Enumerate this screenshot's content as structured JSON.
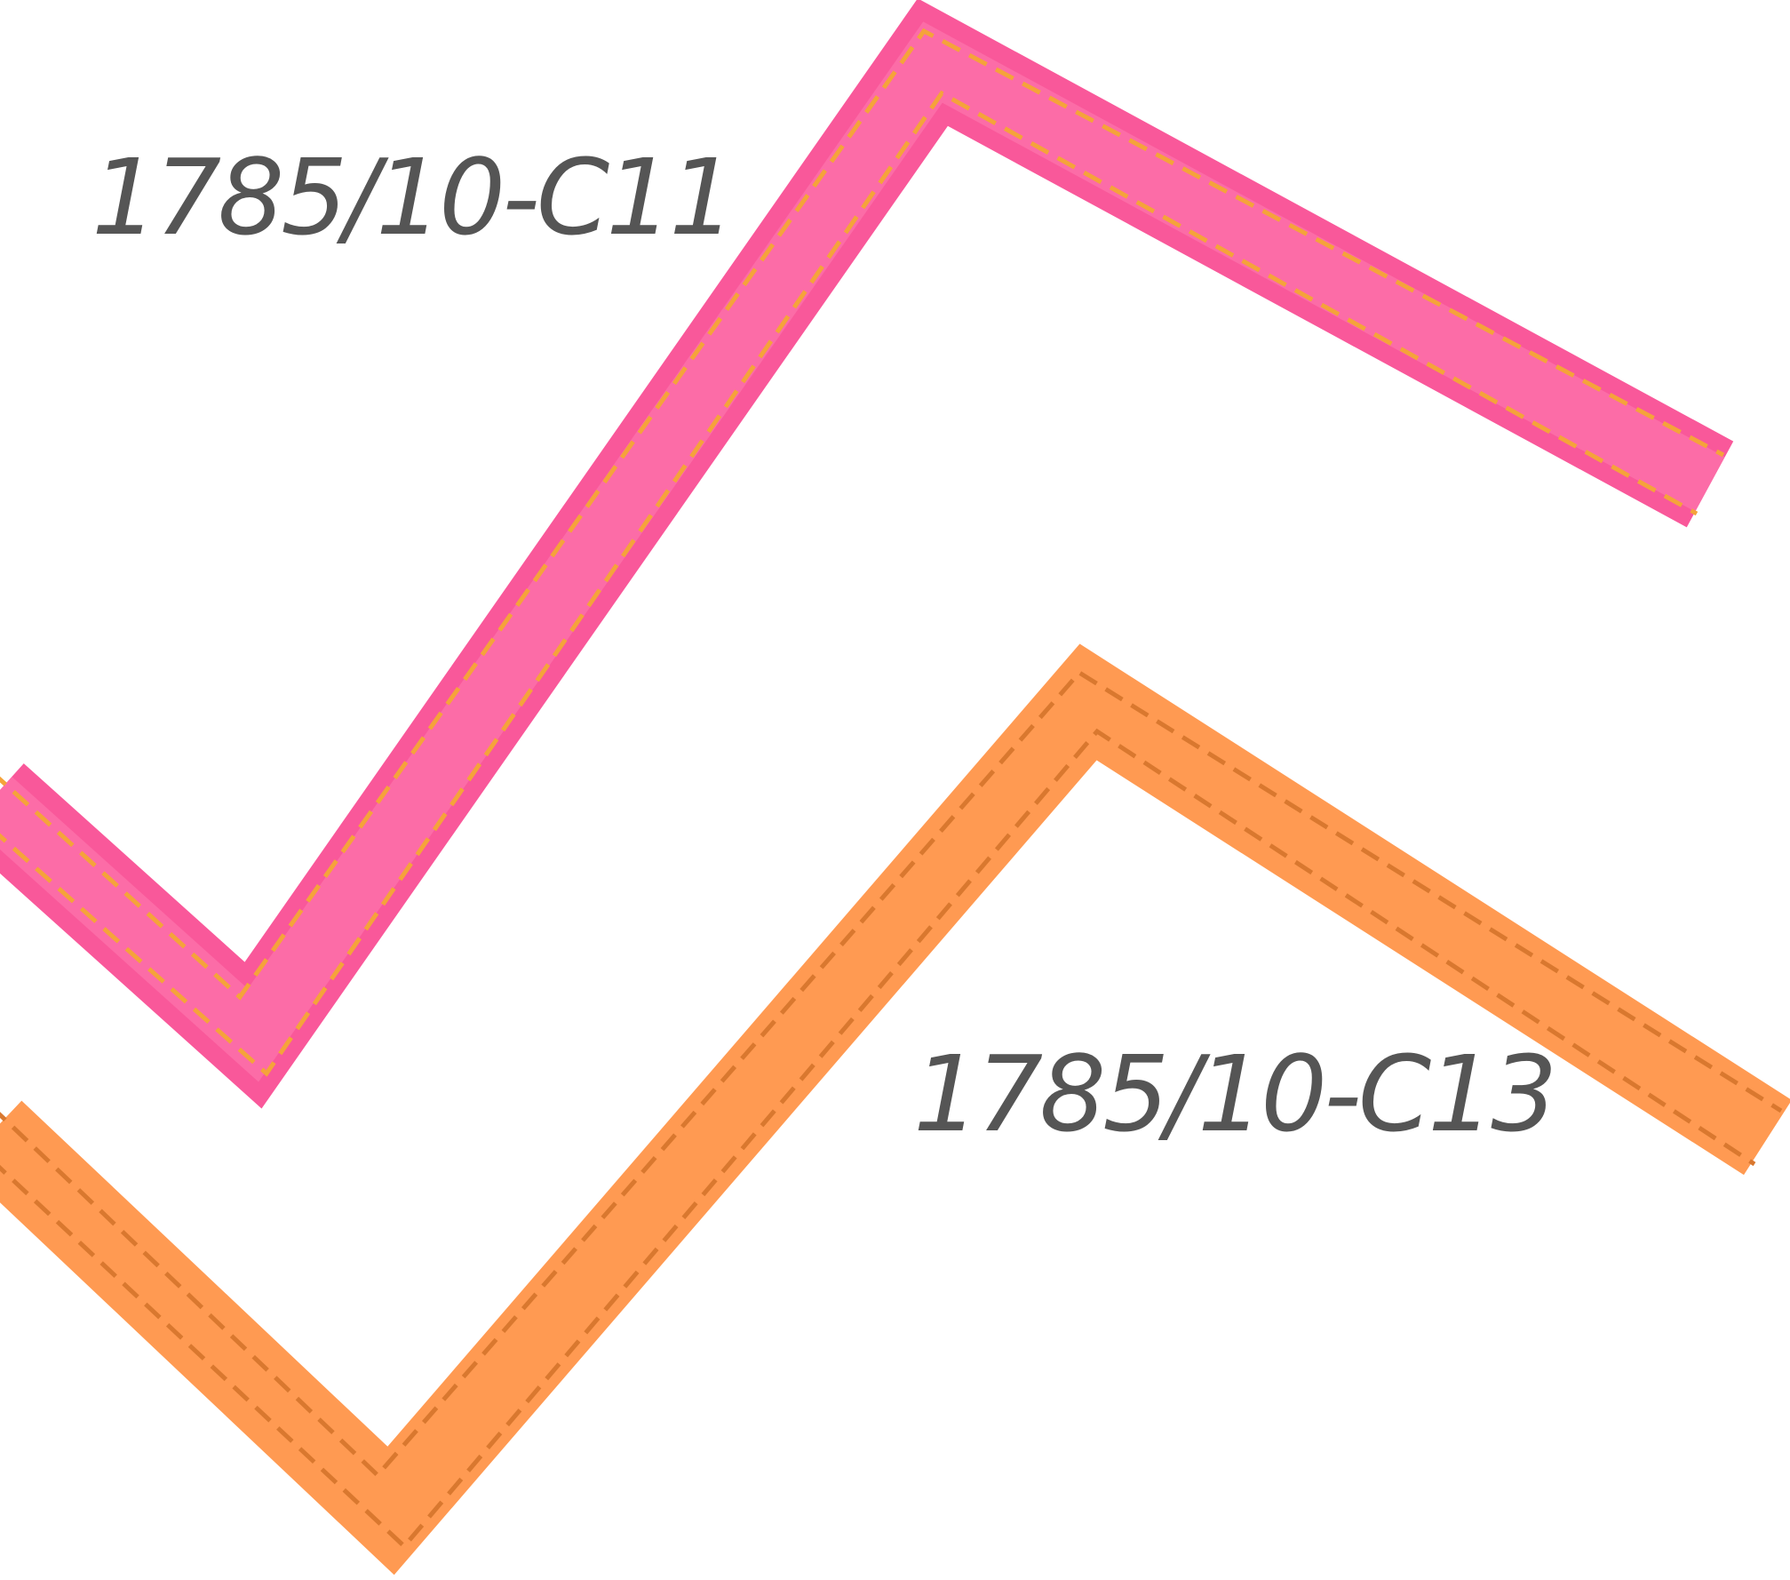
{
  "ribbons": [
    {
      "code": "1785/10-C11"
    },
    {
      "code": "1785/10-C13"
    }
  ]
}
